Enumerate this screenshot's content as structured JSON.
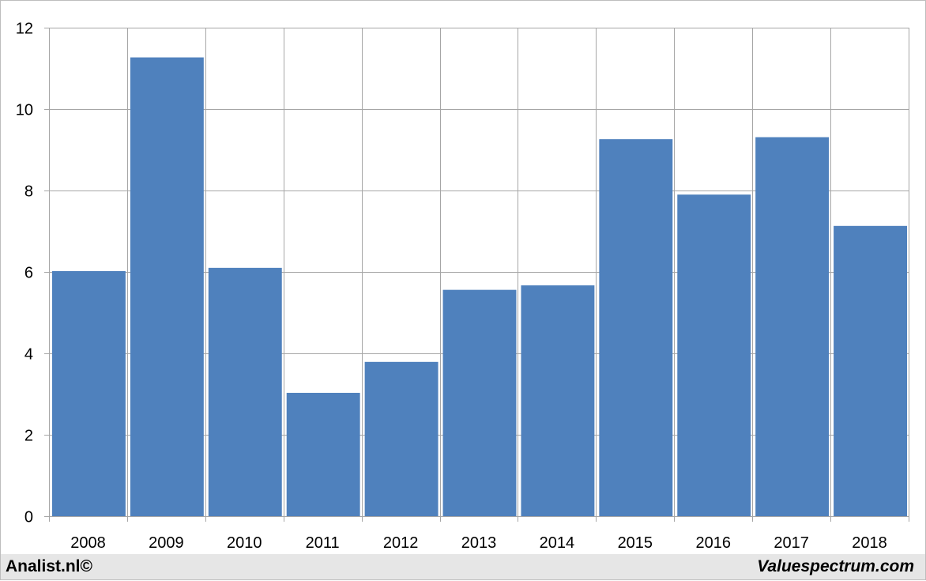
{
  "chart_data": {
    "type": "bar",
    "categories": [
      "2008",
      "2009",
      "2010",
      "2011",
      "2012",
      "2013",
      "2014",
      "2015",
      "2016",
      "2017",
      "2018"
    ],
    "values": [
      6.02,
      11.27,
      6.1,
      3.03,
      3.79,
      5.56,
      5.67,
      9.26,
      7.9,
      9.31,
      7.13
    ],
    "ylim": [
      0,
      12
    ],
    "yticks": [
      0,
      2,
      4,
      6,
      8,
      10,
      12
    ],
    "grid": true,
    "bar_color": "#4f81bd",
    "grid_color": "#a6a6a6"
  },
  "footer": {
    "left": "Analist.nl©",
    "right": "Valuespectrum.com"
  }
}
